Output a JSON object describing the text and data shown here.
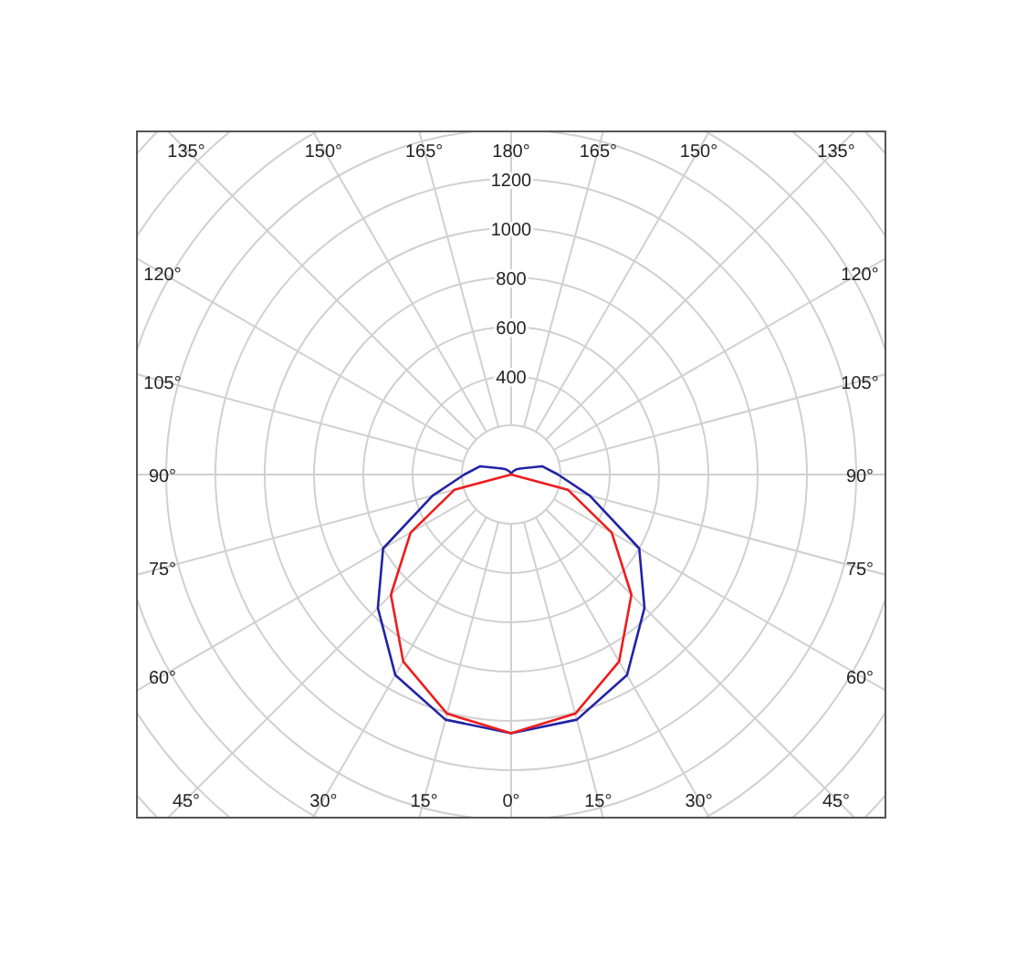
{
  "chart_data": {
    "type": "radar",
    "categories": [
      "180°",
      "165°",
      "150°",
      "135°",
      "120°",
      "105°",
      "90°",
      "75°",
      "60°",
      "45°",
      "30°",
      "15°",
      "0°",
      "15°",
      "30°",
      "45°",
      "60°",
      "75°",
      "90°",
      "105°",
      "120°",
      "135°",
      "150°",
      "165°"
    ],
    "series": [
      {
        "color": "#2323a6",
        "values": [
          0,
          5,
          15,
          30,
          50,
          130,
          190,
          330,
          600,
          765,
          940,
          1030,
          1050,
          1030,
          940,
          765,
          600,
          330,
          190,
          130,
          50,
          30,
          15,
          5
        ]
      },
      {
        "color": "#ee1c1c",
        "values": [
          0,
          0,
          0,
          0,
          0,
          0,
          0,
          238,
          471,
          690,
          876,
          1005,
          1050,
          1005,
          876,
          690,
          471,
          238,
          0,
          0,
          0,
          0,
          0,
          0
        ]
      }
    ],
    "ylim": [
      0,
      2000
    ],
    "yticks": [
      400,
      600,
      800,
      1000,
      1200
    ],
    "grid": true
  }
}
